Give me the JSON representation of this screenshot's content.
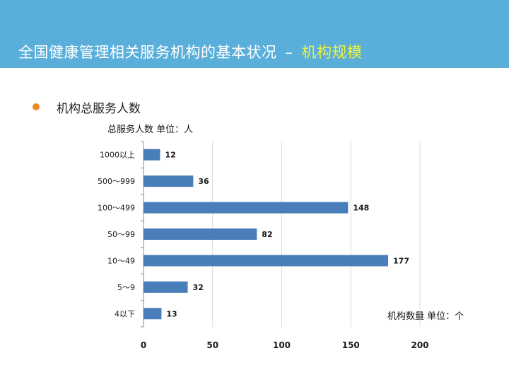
{
  "header": {
    "title_main": "全国健康管理相关服务机构的基本状况",
    "separator": "–",
    "title_highlight": "机构规模",
    "bg_color": "#5aafda",
    "highlight_color": "#f2f23c"
  },
  "bullet": {
    "text": "机构总服务人数",
    "dot_color": "#f08a24"
  },
  "chart_units": {
    "top": "总服务人数 单位：人",
    "right": "机构数量 单位：个"
  },
  "chart_data": {
    "type": "bar",
    "orientation": "horizontal",
    "categories": [
      "1000以上",
      "500～999",
      "100～499",
      "50～99",
      "10～49",
      "5～9",
      "4以下"
    ],
    "values": [
      12,
      36,
      148,
      82,
      177,
      32,
      13
    ],
    "xlim": [
      0,
      200
    ],
    "xticks": [
      0,
      50,
      100,
      150,
      200
    ],
    "grid": true,
    "bar_color": "#4a7ebb"
  }
}
